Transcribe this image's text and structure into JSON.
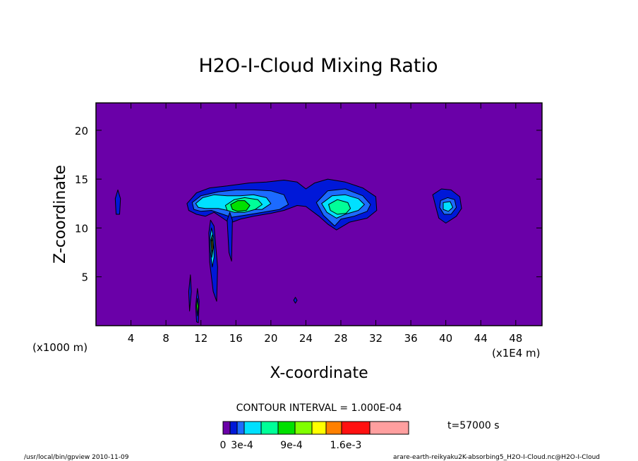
{
  "chart_data": {
    "type": "heatmap",
    "title": "H2O-I-Cloud Mixing Ratio",
    "xlabel": "X-coordinate",
    "ylabel": "Z-coordinate",
    "xunit": "(x1E4 m)",
    "yunit": "(x1000 m)",
    "xlim": [
      0,
      51
    ],
    "ylim": [
      0,
      22.8
    ],
    "xticks": [
      4,
      8,
      12,
      16,
      20,
      24,
      28,
      32,
      36,
      40,
      44,
      48
    ],
    "yticks": [
      5,
      10,
      15,
      20
    ],
    "contour_interval": "CONTOUR INTERVAL = 1.000E-04",
    "time_label": "t=57000 s",
    "colorbar": {
      "colors": [
        "#6a00a8",
        "#0018d8",
        "#1c6bff",
        "#00e0ff",
        "#00ff98",
        "#00e000",
        "#80ff00",
        "#ffff00",
        "#ff8000",
        "#ff1010",
        "#ff9f9f"
      ],
      "labels": [
        "0",
        "3e-4",
        "9e-4",
        "1.6e-3"
      ]
    },
    "features": [
      {
        "level": 1,
        "x": [
          2.5,
          2.8,
          2.7,
          2.3,
          2.2,
          2.5
        ],
        "z": [
          13.9,
          13.0,
          11.4,
          11.4,
          13.0,
          13.9
        ]
      },
      {
        "level": 1,
        "x": [
          10.4,
          11.5,
          13.0,
          15.0,
          17.5,
          19.5,
          21.5,
          23.0,
          24.0,
          25.0,
          26.5,
          28.5,
          30.5,
          32.0,
          32.1,
          31.0,
          29.0,
          27.5,
          26.5,
          25.5,
          24.0,
          23.0,
          21.5,
          20.0,
          18.0,
          16.5,
          15.3,
          14.5,
          13.5,
          12.5,
          11.5,
          10.6,
          10.4
        ],
        "z": [
          12.5,
          13.6,
          14.1,
          14.3,
          14.6,
          14.7,
          14.9,
          14.7,
          14.0,
          14.6,
          15.0,
          14.7,
          14.1,
          13.2,
          11.8,
          11.0,
          10.6,
          9.8,
          10.4,
          11.2,
          12.2,
          12.3,
          11.8,
          11.5,
          11.2,
          10.9,
          10.5,
          11.0,
          11.6,
          11.2,
          11.4,
          11.8,
          12.5
        ]
      },
      {
        "level": 2,
        "x": [
          11.0,
          12.0,
          14.0,
          16.0,
          18.0,
          20.0,
          21.5,
          22.0,
          21.0,
          19.0,
          17.0,
          15.5,
          14.5,
          13.2,
          12.0,
          11.2,
          11.0
        ],
        "z": [
          12.6,
          13.3,
          13.7,
          13.9,
          13.9,
          13.8,
          13.4,
          12.4,
          11.9,
          11.6,
          11.3,
          11.1,
          11.4,
          11.8,
          11.7,
          11.9,
          12.6
        ]
      },
      {
        "level": 2,
        "x": [
          25.2,
          26.5,
          28.5,
          30.5,
          31.4,
          31.0,
          29.5,
          28.0,
          27.3,
          26.0,
          25.2
        ],
        "z": [
          12.6,
          13.8,
          14.0,
          13.3,
          12.4,
          11.7,
          11.2,
          10.9,
          10.2,
          11.3,
          12.6
        ]
      },
      {
        "level": 3,
        "x": [
          11.4,
          12.2,
          13.5,
          15.0,
          16.5,
          18.0,
          19.5,
          20.0,
          19.0,
          17.5,
          15.5,
          14.0,
          12.5,
          11.7,
          11.4
        ],
        "z": [
          12.5,
          13.1,
          13.4,
          13.3,
          13.3,
          13.4,
          13.1,
          12.5,
          11.9,
          11.9,
          11.7,
          12.0,
          12.0,
          12.1,
          12.5
        ]
      },
      {
        "level": 3,
        "x": [
          25.8,
          27.0,
          28.5,
          30.0,
          30.7,
          30.0,
          28.5,
          27.5,
          26.4,
          25.8
        ],
        "z": [
          12.5,
          13.3,
          13.4,
          13.0,
          12.4,
          11.8,
          11.4,
          11.0,
          11.6,
          12.5
        ]
      },
      {
        "level": 4,
        "x": [
          14.8,
          15.8,
          17.0,
          18.5,
          19.0,
          18.2,
          17.0,
          15.8,
          15.0,
          14.8
        ],
        "z": [
          12.3,
          12.9,
          13.1,
          12.9,
          12.4,
          11.9,
          11.6,
          11.6,
          11.8,
          12.3
        ]
      },
      {
        "level": 4,
        "x": [
          26.6,
          27.6,
          28.8,
          29.1,
          28.6,
          27.6,
          26.8,
          26.6
        ],
        "z": [
          12.4,
          12.9,
          12.6,
          12.0,
          11.5,
          11.4,
          11.8,
          12.4
        ]
      },
      {
        "level": 5,
        "x": [
          15.4,
          16.2,
          17.0,
          17.6,
          17.2,
          16.2,
          15.6,
          15.4
        ],
        "z": [
          12.4,
          12.8,
          12.8,
          12.3,
          11.8,
          11.7,
          11.9,
          12.4
        ]
      },
      {
        "level": 1,
        "x": [
          38.5,
          39.5,
          40.6,
          41.6,
          41.8,
          41.2,
          40.0,
          39.2,
          38.9,
          38.5
        ],
        "z": [
          13.4,
          14.0,
          13.9,
          13.2,
          12.0,
          11.2,
          10.5,
          11.0,
          12.0,
          13.4
        ]
      },
      {
        "level": 2,
        "x": [
          39.4,
          40.2,
          41.0,
          41.2,
          40.6,
          39.8,
          39.3,
          39.4
        ],
        "z": [
          12.8,
          13.1,
          12.9,
          12.1,
          11.4,
          11.4,
          12.1,
          12.8
        ]
      },
      {
        "level": 3,
        "x": [
          39.7,
          40.5,
          40.8,
          40.3,
          39.7,
          39.7
        ],
        "z": [
          12.6,
          12.7,
          12.1,
          11.7,
          11.9,
          12.6
        ]
      },
      {
        "level": 1,
        "x": [
          12.9,
          13.1,
          13.5,
          13.9,
          13.8,
          13.4,
          13.0,
          12.9
        ],
        "z": [
          9.5,
          10.8,
          10.2,
          6.0,
          2.5,
          3.5,
          6.5,
          9.5
        ]
      },
      {
        "level": 3,
        "x": [
          13.05,
          13.2,
          13.45,
          13.5,
          13.3,
          13.1,
          13.05
        ],
        "z": [
          9.0,
          10.0,
          9.0,
          7.0,
          6.0,
          7.5,
          9.0
        ]
      },
      {
        "level": 6,
        "x": [
          13.15,
          13.3,
          13.4,
          13.25,
          13.15
        ],
        "z": [
          8.8,
          9.3,
          8.0,
          7.0,
          8.8
        ]
      },
      {
        "level": 7,
        "x": [
          13.2,
          13.3,
          13.35,
          13.25,
          13.2
        ],
        "z": [
          8.6,
          9.0,
          7.8,
          7.4,
          8.6
        ]
      },
      {
        "level": 1,
        "x": [
          15.0,
          15.3,
          15.6,
          15.5,
          15.2,
          15.0
        ],
        "z": [
          10.8,
          11.6,
          10.8,
          6.6,
          7.5,
          10.8
        ]
      },
      {
        "level": 1,
        "x": [
          10.6,
          10.8,
          10.9,
          10.7,
          10.6
        ],
        "z": [
          3.5,
          5.2,
          3.5,
          1.5,
          3.5
        ]
      },
      {
        "level": 1,
        "x": [
          11.4,
          11.6,
          11.8,
          11.7,
          11.5,
          11.4
        ],
        "z": [
          2.0,
          3.8,
          2.5,
          0.3,
          0.4,
          2.0
        ]
      },
      {
        "level": 5,
        "x": [
          11.5,
          11.6,
          11.7,
          11.6,
          11.5
        ],
        "z": [
          2.0,
          2.8,
          2.0,
          1.0,
          2.0
        ]
      },
      {
        "level": 1,
        "x": [
          22.6,
          22.8,
          23.0,
          22.8,
          22.6
        ],
        "z": [
          2.6,
          2.9,
          2.6,
          2.3,
          2.6
        ]
      }
    ]
  },
  "footer": {
    "left": "/usr/local/bin/gpview  2010-11-09",
    "right": "arare-earth-reikyaku2K-absorbing5_H2O-I-Cloud.nc@H2O-I-Cloud"
  }
}
